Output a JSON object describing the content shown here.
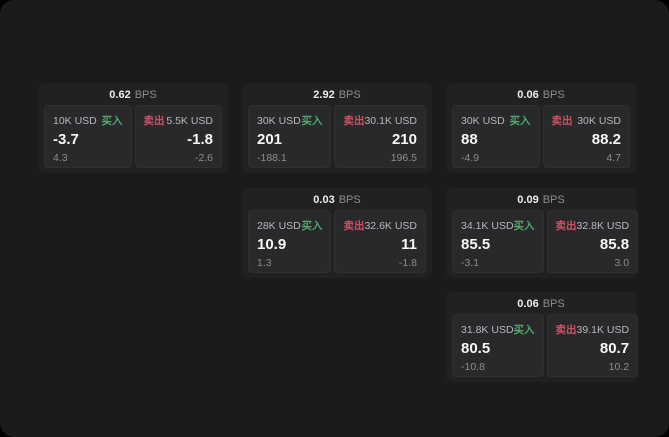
{
  "labels": {
    "bps_unit": "BPS",
    "buy": "买入",
    "sell": "卖出"
  },
  "colors": {
    "panel_bg": "#1b1b1c",
    "card_bg": "#212123",
    "pane_bg": "#29292b",
    "buy": "#55a56d",
    "sell": "#cf5064"
  },
  "cards": [
    {
      "bps": "0.62",
      "buy": {
        "amount": "10K USD",
        "price": "-3.7",
        "change": "4.3"
      },
      "sell": {
        "amount": "5.5K USD",
        "price": "-1.8",
        "change": "-2.6"
      }
    },
    {
      "bps": "2.92",
      "buy": {
        "amount": "30K USD",
        "price": "201",
        "change": "-188.1"
      },
      "sell": {
        "amount": "30.1K USD",
        "price": "210",
        "change": "196.5"
      }
    },
    {
      "bps": "0.06",
      "buy": {
        "amount": "30K USD",
        "price": "88",
        "change": "-4.9"
      },
      "sell": {
        "amount": "30K USD",
        "price": "88.2",
        "change": "4.7"
      }
    },
    {
      "bps": "0.03",
      "buy": {
        "amount": "28K USD",
        "price": "10.9",
        "change": "1.3"
      },
      "sell": {
        "amount": "32.6K USD",
        "price": "11",
        "change": "-1.8"
      }
    },
    {
      "bps": "0.09",
      "buy": {
        "amount": "34.1K USD",
        "price": "85.5",
        "change": "-3.1"
      },
      "sell": {
        "amount": "32.8K USD",
        "price": "85.8",
        "change": "3.0"
      }
    },
    {
      "bps": "0.06",
      "buy": {
        "amount": "31.8K USD",
        "price": "80.5",
        "change": "-10.8"
      },
      "sell": {
        "amount": "39.1K USD",
        "price": "80.7",
        "change": "10.2"
      }
    }
  ]
}
